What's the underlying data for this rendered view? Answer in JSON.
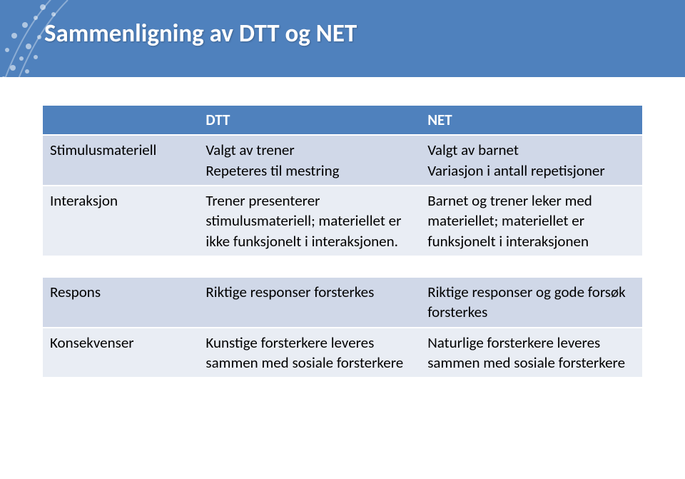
{
  "title": "Sammenligning av DTT og NET",
  "header_bg": "#4f81bd",
  "table": {
    "head_bg": "#4f81bd",
    "row_even_bg": "#d0d8e8",
    "row_odd_bg": "#e9edf4",
    "columns": [
      "",
      "DTT",
      "NET"
    ],
    "top": [
      {
        "label": "Stimulusmateriell",
        "dtt": "Valgt av trener\nRepeteres til mestring",
        "net": "Valgt av barnet\nVariasjon i antall repetisjoner"
      },
      {
        "label": "Interaksjon",
        "dtt": "Trener presenterer stimulusmateriell; materiellet er ikke funksjonelt i interaksjonen.",
        "net": "Barnet og trener leker med materiellet; materiellet er funksjonelt i interaksjonen"
      }
    ],
    "bottom": [
      {
        "label": "Respons",
        "dtt": "Riktige responser forsterkes",
        "net": "Riktige responser og gode forsøk forsterkes"
      },
      {
        "label": "Konsekvenser",
        "dtt": "Kunstige forsterkere leveres sammen med sosiale forsterkere",
        "net": "Naturlige forsterkere leveres sammen med sosiale forsterkere"
      }
    ]
  }
}
